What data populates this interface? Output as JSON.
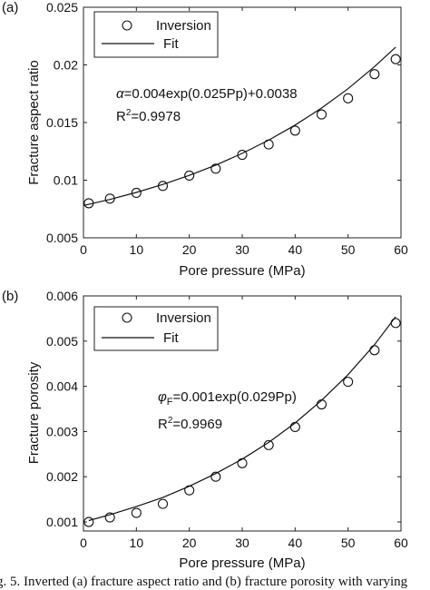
{
  "chart_data": [
    {
      "type": "scatter",
      "panel_label": "(a)",
      "xlabel": "Pore pressure (MPa)",
      "ylabel": "Fracture aspect ratio",
      "xlim": [
        0,
        60
      ],
      "ylim": [
        0.005,
        0.025
      ],
      "xticks": [
        "0",
        "10",
        "20",
        "30",
        "40",
        "50",
        "60"
      ],
      "yticks": [
        "0.005",
        "0.01",
        "0.015",
        "0.02",
        "0.025"
      ],
      "legend_position": "top-left",
      "legend": [
        "Inversion",
        "Fit"
      ],
      "annotation_equation": "α=0.004exp(0.025Pp)+0.0038",
      "annotation_r2": "R2=0.9978",
      "series": [
        {
          "name": "Inversion",
          "style": "circles",
          "x": [
            1,
            5,
            10,
            15,
            20,
            25,
            30,
            35,
            40,
            45,
            50,
            55,
            59
          ],
          "y": [
            0.008,
            0.0084,
            0.0089,
            0.0095,
            0.0104,
            0.011,
            0.0122,
            0.0131,
            0.0143,
            0.0157,
            0.0171,
            0.0192,
            0.0205
          ]
        },
        {
          "name": "Fit",
          "style": "line",
          "x": [
            0,
            5,
            10,
            15,
            20,
            25,
            30,
            35,
            40,
            45,
            50,
            55,
            59
          ],
          "y": [
            0.0078,
            0.00833,
            0.00894,
            0.00963,
            0.01042,
            0.01131,
            0.01232,
            0.01347,
            0.01478,
            0.01626,
            0.01794,
            0.01985,
            0.02154
          ]
        }
      ]
    },
    {
      "type": "scatter",
      "panel_label": "(b)",
      "xlabel": "Pore pressure (MPa)",
      "ylabel": "Fracture porosity",
      "xlim": [
        0,
        60
      ],
      "ylim": [
        0.0008,
        0.006
      ],
      "xticks": [
        "0",
        "10",
        "20",
        "30",
        "40",
        "50",
        "60"
      ],
      "yticks": [
        "0.001",
        "0.002",
        "0.003",
        "0.004",
        "0.005",
        "0.006"
      ],
      "legend_position": "top-left",
      "legend": [
        "Inversion",
        "Fit"
      ],
      "annotation_equation": "φF=0.001exp(0.029Pp)",
      "annotation_r2": "R2=0.9969",
      "series": [
        {
          "name": "Inversion",
          "style": "circles",
          "x": [
            1,
            5,
            10,
            15,
            20,
            25,
            30,
            35,
            40,
            45,
            50,
            55,
            59
          ],
          "y": [
            0.001,
            0.0011,
            0.0012,
            0.0014,
            0.0017,
            0.002,
            0.0023,
            0.0027,
            0.0031,
            0.0036,
            0.0041,
            0.0048,
            0.0054
          ]
        },
        {
          "name": "Fit",
          "style": "line",
          "x": [
            1,
            5,
            10,
            15,
            20,
            25,
            30,
            35,
            40,
            45,
            50,
            55,
            59
          ],
          "y": [
            0.00103,
            0.00116,
            0.00134,
            0.00154,
            0.00179,
            0.00207,
            0.00239,
            0.00276,
            0.00319,
            0.00369,
            0.00426,
            0.00492,
            0.00554
          ]
        }
      ]
    }
  ],
  "caption": "g. 5.   Inverted (a) fracture aspect ratio and (b) fracture porosity with varying"
}
